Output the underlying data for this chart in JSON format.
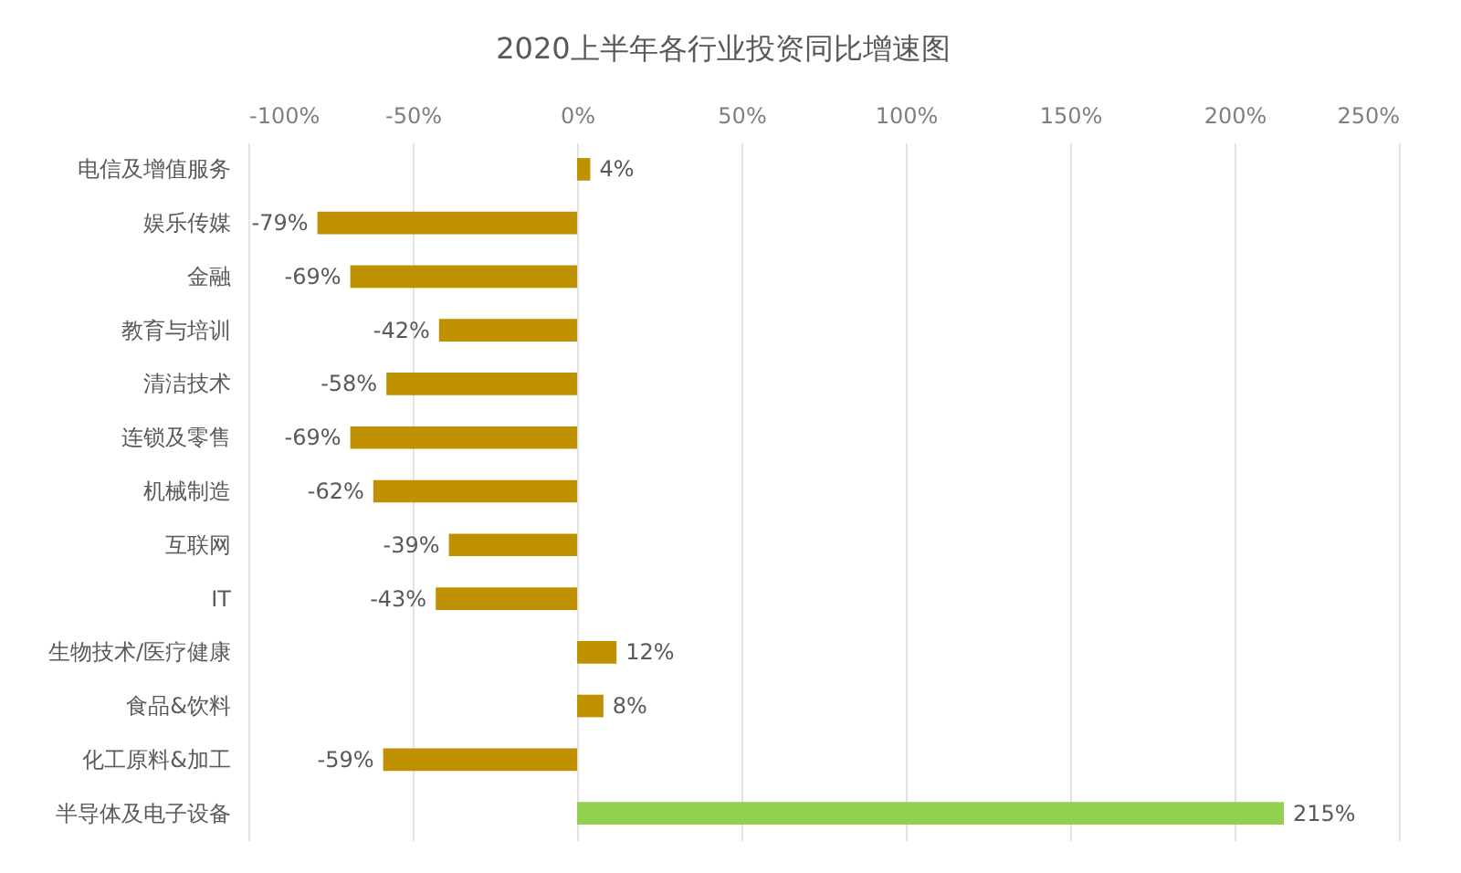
{
  "chart_data": {
    "type": "bar",
    "title": "2020上半年各行业投资同比增速图",
    "orientation": "horizontal",
    "categories": [
      "电信及增值服务",
      "娱乐传媒",
      "金融",
      "教育与培训",
      "清洁技术",
      "连锁及零售",
      "机械制造",
      "互联网",
      "IT",
      "生物技术/医疗健康",
      "食品&饮料",
      "化工原料&加工",
      "半导体及电子设备"
    ],
    "values": [
      4,
      -79,
      -69,
      -42,
      -58,
      -69,
      -62,
      -39,
      -43,
      12,
      8,
      -59,
      215
    ],
    "colors": [
      "#bf9000",
      "#bf9000",
      "#bf9000",
      "#bf9000",
      "#bf9000",
      "#bf9000",
      "#bf9000",
      "#bf9000",
      "#bf9000",
      "#bf9000",
      "#bf9000",
      "#bf9000",
      "#92d050"
    ],
    "value_labels": [
      "4%",
      "-79%",
      "-69%",
      "-42%",
      "-58%",
      "-69%",
      "-62%",
      "-39%",
      "-43%",
      "12%",
      "8%",
      "-59%",
      "215%"
    ],
    "xlim": [
      -100,
      250
    ],
    "xticks": [
      {
        "value": -100,
        "label": "-100%"
      },
      {
        "value": -50,
        "label": "-50%"
      },
      {
        "value": 0,
        "label": "0%"
      },
      {
        "value": 50,
        "label": "50%"
      },
      {
        "value": 100,
        "label": "100%"
      },
      {
        "value": 150,
        "label": "150%"
      },
      {
        "value": 200,
        "label": "200%"
      },
      {
        "value": 250,
        "label": "250%"
      }
    ],
    "grid": "x"
  }
}
